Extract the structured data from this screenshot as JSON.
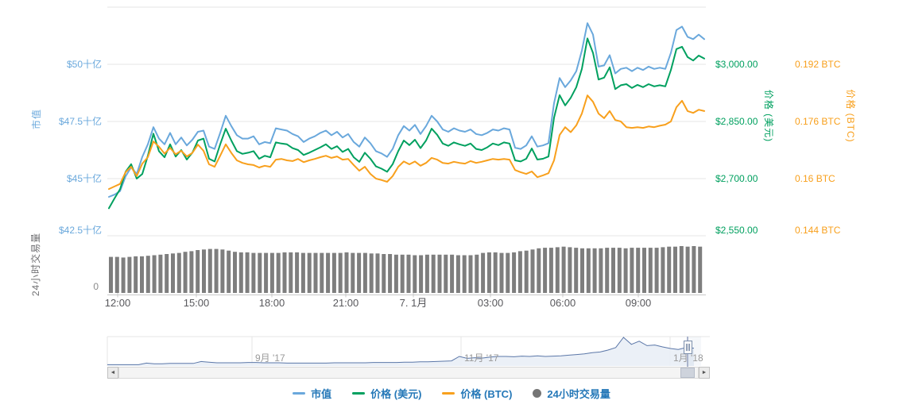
{
  "colors": {
    "market_cap": "#6AA8DC",
    "usd": "#00A05F",
    "btc": "#F8A01D",
    "volume": "#7E7E7E",
    "legend_text": "#2578B8",
    "gridline": "#E6E6E6",
    "axis_line": "#C9C9C9",
    "x_label": "#58585C",
    "navigator_line": "#5B77A8",
    "navigator_fill": "#E9EEF6",
    "navigator_label": "#9A9A9A",
    "volume_dot": "#757575"
  },
  "axes": {
    "market_cap": {
      "title": "市值",
      "labels": [
        "$50十亿",
        "$47.5十亿",
        "$45十亿",
        "$42.5十亿"
      ]
    },
    "usd": {
      "title": "价格 (美元)",
      "labels": [
        "$3,000.00",
        "$2,850.00",
        "$2,700.00",
        "$2,550.00"
      ]
    },
    "btc": {
      "title": "价格 (BTC)",
      "labels": [
        "0.192 BTC",
        "0.176 BTC",
        "0.16 BTC",
        "0.144 BTC"
      ]
    },
    "volume": {
      "title": "24小时交易量",
      "zero_label": "0"
    }
  },
  "legend": [
    {
      "label": "市值",
      "marker": "line",
      "color": "#6AA8DC"
    },
    {
      "label": "价格 (美元)",
      "marker": "line",
      "color": "#00A05F"
    },
    {
      "label": "价格 (BTC)",
      "marker": "line",
      "color": "#F8A01D"
    },
    {
      "label": "24小时交易量",
      "marker": "dot",
      "color": "#757575"
    }
  ],
  "scrollbar": {
    "left_arrow": "◄",
    "right_arrow": "►"
  },
  "chart_data": {
    "type": "line",
    "x_tick_labels": [
      "12:00",
      "15:00",
      "18:00",
      "21:00",
      "7. 1月",
      "03:00",
      "06:00",
      "09:00"
    ],
    "axis_ranges": {
      "market_cap": [
        42.5,
        52.5
      ],
      "usd": [
        2550,
        3150
      ],
      "btc": [
        0.144,
        0.208
      ]
    },
    "grid": "horizontal-only",
    "legend_position": "bottom-center",
    "series": [
      {
        "name": "市值",
        "type": "line",
        "axis": "market_cap",
        "unit": "$ billion (十亿)",
        "color": "#6AA8DC",
        "values": [
          44.2,
          44.3,
          44.45,
          45.1,
          45.5,
          45.2,
          45.95,
          46.5,
          47.25,
          46.75,
          46.5,
          47.0,
          46.5,
          46.8,
          46.45,
          46.7,
          47.05,
          47.1,
          46.4,
          46.3,
          47.0,
          47.75,
          47.3,
          46.9,
          46.75,
          46.75,
          46.85,
          46.5,
          46.6,
          46.55,
          47.2,
          47.15,
          47.1,
          46.95,
          46.85,
          46.6,
          46.75,
          46.85,
          47.0,
          47.1,
          46.9,
          47.05,
          46.8,
          46.95,
          46.6,
          46.4,
          46.8,
          46.55,
          46.2,
          46.1,
          45.95,
          46.3,
          46.9,
          47.3,
          47.1,
          47.35,
          46.95,
          47.3,
          47.75,
          47.5,
          47.15,
          47.05,
          47.2,
          47.1,
          47.05,
          47.15,
          46.95,
          46.9,
          47.0,
          47.15,
          47.1,
          47.2,
          47.15,
          46.35,
          46.3,
          46.45,
          46.85,
          46.4,
          46.45,
          46.55,
          48.3,
          49.4,
          49.0,
          49.3,
          49.7,
          50.6,
          51.8,
          51.3,
          49.9,
          49.95,
          50.4,
          49.6,
          49.8,
          49.85,
          49.7,
          49.85,
          49.75,
          49.9,
          49.8,
          49.85,
          49.8,
          50.5,
          51.5,
          51.65,
          51.2,
          51.1,
          51.3,
          51.1
        ]
      },
      {
        "name": "价格 (美元)",
        "type": "line",
        "axis": "usd",
        "unit": "USD",
        "color": "#00A05F",
        "values": [
          2622,
          2648,
          2672,
          2718,
          2738,
          2700,
          2712,
          2760,
          2818,
          2772,
          2756,
          2790,
          2758,
          2775,
          2750,
          2768,
          2800,
          2805,
          2752,
          2745,
          2790,
          2831,
          2800,
          2772,
          2765,
          2768,
          2772,
          2752,
          2760,
          2756,
          2795,
          2792,
          2790,
          2780,
          2775,
          2762,
          2768,
          2775,
          2782,
          2790,
          2778,
          2785,
          2770,
          2778,
          2756,
          2744,
          2768,
          2752,
          2732,
          2726,
          2718,
          2738,
          2772,
          2800,
          2788,
          2802,
          2780,
          2800,
          2831,
          2815,
          2792,
          2786,
          2795,
          2790,
          2786,
          2792,
          2778,
          2775,
          2782,
          2792,
          2788,
          2795,
          2792,
          2748,
          2745,
          2752,
          2779,
          2750,
          2752,
          2758,
          2860,
          2919,
          2892,
          2912,
          2940,
          2988,
          3068,
          3030,
          2960,
          2965,
          2992,
          2935,
          2945,
          2948,
          2938,
          2946,
          2940,
          2948,
          2942,
          2945,
          2942,
          2985,
          3040,
          3046,
          3019,
          3010,
          3023,
          3015
        ]
      },
      {
        "name": "价格 (BTC)",
        "type": "line",
        "axis": "btc",
        "unit": "BTC",
        "color": "#F8A01D",
        "values": [
          0.1571,
          0.1578,
          0.1585,
          0.1618,
          0.1633,
          0.1607,
          0.1642,
          0.166,
          0.1704,
          0.1689,
          0.167,
          0.1686,
          0.1668,
          0.1678,
          0.1662,
          0.1672,
          0.1695,
          0.1678,
          0.164,
          0.1633,
          0.1664,
          0.1696,
          0.1672,
          0.1651,
          0.1644,
          0.164,
          0.1638,
          0.1631,
          0.1636,
          0.1633,
          0.1653,
          0.1655,
          0.1651,
          0.1649,
          0.1655,
          0.1646,
          0.1651,
          0.1655,
          0.166,
          0.1664,
          0.1658,
          0.1662,
          0.1653,
          0.1655,
          0.1638,
          0.1622,
          0.1633,
          0.1613,
          0.16,
          0.1596,
          0.1591,
          0.1607,
          0.1633,
          0.1648,
          0.164,
          0.1648,
          0.1636,
          0.1644,
          0.1658,
          0.1653,
          0.1644,
          0.1642,
          0.1647,
          0.1644,
          0.1642,
          0.1649,
          0.1644,
          0.1647,
          0.1651,
          0.1655,
          0.1653,
          0.1655,
          0.1653,
          0.1624,
          0.1618,
          0.1613,
          0.162,
          0.1604,
          0.1609,
          0.1615,
          0.1651,
          0.1722,
          0.1744,
          0.173,
          0.1749,
          0.1782,
          0.1833,
          0.1815,
          0.1782,
          0.1769,
          0.1789,
          0.1764,
          0.176,
          0.1744,
          0.1742,
          0.1744,
          0.1742,
          0.1746,
          0.1744,
          0.1748,
          0.1751,
          0.176,
          0.18,
          0.1818,
          0.1789,
          0.1784,
          0.1793,
          0.1789
        ]
      },
      {
        "name": "24小时交易量",
        "type": "column",
        "axis": "volume",
        "unit": "relative 0-1",
        "color": "#7E7E7E",
        "values": [
          0.63,
          0.63,
          0.62,
          0.63,
          0.64,
          0.64,
          0.65,
          0.66,
          0.67,
          0.68,
          0.69,
          0.7,
          0.72,
          0.73,
          0.75,
          0.76,
          0.77,
          0.77,
          0.76,
          0.74,
          0.72,
          0.71,
          0.71,
          0.7,
          0.7,
          0.7,
          0.7,
          0.7,
          0.71,
          0.71,
          0.71,
          0.7,
          0.7,
          0.7,
          0.7,
          0.7,
          0.7,
          0.7,
          0.71,
          0.7,
          0.7,
          0.7,
          0.69,
          0.69,
          0.68,
          0.68,
          0.67,
          0.67,
          0.67,
          0.66,
          0.66,
          0.67,
          0.67,
          0.67,
          0.67,
          0.67,
          0.66,
          0.66,
          0.66,
          0.67,
          0.7,
          0.71,
          0.71,
          0.7,
          0.7,
          0.71,
          0.73,
          0.74,
          0.76,
          0.78,
          0.79,
          0.79,
          0.8,
          0.81,
          0.8,
          0.79,
          0.78,
          0.78,
          0.78,
          0.78,
          0.79,
          0.79,
          0.79,
          0.78,
          0.79,
          0.79,
          0.79,
          0.79,
          0.79,
          0.8,
          0.81,
          0.81,
          0.82,
          0.81,
          0.82,
          0.81
        ]
      }
    ],
    "navigator": {
      "labels": [
        "9月 '17",
        "11月 '17",
        "1月 '18"
      ],
      "values_relative": [
        0.04,
        0.04,
        0.04,
        0.04,
        0.04,
        0.09,
        0.07,
        0.07,
        0.08,
        0.08,
        0.08,
        0.08,
        0.14,
        0.12,
        0.1,
        0.1,
        0.1,
        0.1,
        0.11,
        0.11,
        0.1,
        0.1,
        0.1,
        0.09,
        0.09,
        0.09,
        0.09,
        0.09,
        0.09,
        0.1,
        0.1,
        0.1,
        0.1,
        0.1,
        0.11,
        0.11,
        0.11,
        0.11,
        0.12,
        0.12,
        0.13,
        0.13,
        0.14,
        0.15,
        0.16,
        0.3,
        0.24,
        0.26,
        0.25,
        0.28,
        0.3,
        0.3,
        0.29,
        0.31,
        0.3,
        0.32,
        0.3,
        0.31,
        0.32,
        0.34,
        0.36,
        0.38,
        0.42,
        0.44,
        0.5,
        0.58,
        0.9,
        0.68,
        0.78,
        0.64,
        0.66,
        0.6,
        0.55,
        0.52,
        0.58,
        0.56
      ]
    }
  }
}
